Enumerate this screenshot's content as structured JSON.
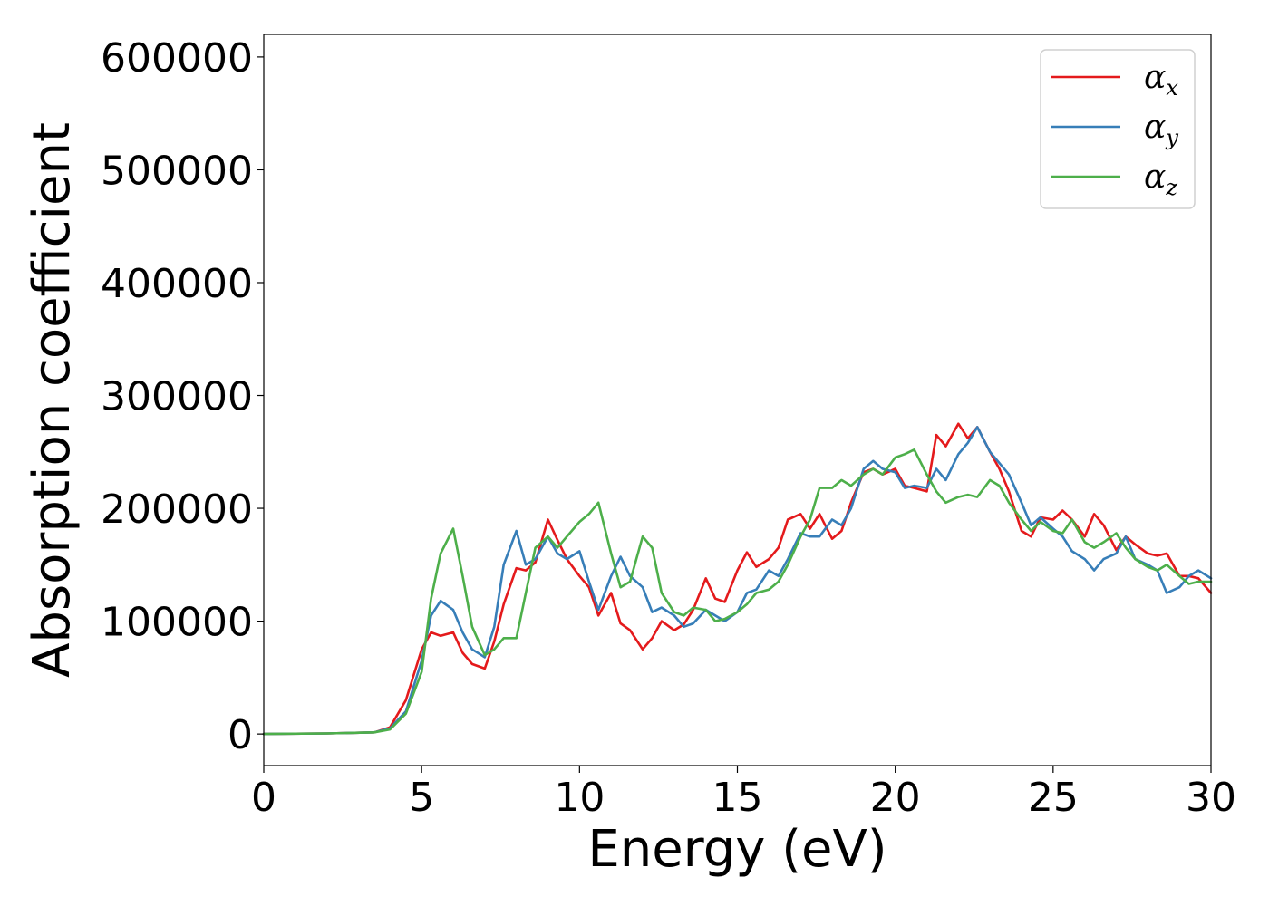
{
  "chart_data": {
    "type": "line",
    "title": "",
    "xlabel": "Energy (eV)",
    "ylabel": "Absorption coefficient",
    "xlim": [
      0,
      30
    ],
    "ylim": [
      -28000,
      620000
    ],
    "xticks": [
      0,
      5,
      10,
      15,
      20,
      25,
      30
    ],
    "xtick_labels": [
      "0",
      "5",
      "10",
      "15",
      "20",
      "25",
      "30"
    ],
    "yticks": [
      0,
      100000,
      200000,
      300000,
      400000,
      500000,
      600000
    ],
    "ytick_labels": [
      "0",
      "100000",
      "200000",
      "300000",
      "400000",
      "500000",
      "600000"
    ],
    "grid": false,
    "legend_position": "top-right",
    "series": [
      {
        "name": "αx",
        "name_base": "α",
        "name_sub": "x",
        "color": "#e41a1c",
        "x": [
          0,
          2,
          3.5,
          4.0,
          4.5,
          5.0,
          5.3,
          5.6,
          6.0,
          6.3,
          6.6,
          7.0,
          7.3,
          7.6,
          8.0,
          8.3,
          8.6,
          9.0,
          9.3,
          9.6,
          10.0,
          10.3,
          10.6,
          11.0,
          11.3,
          11.6,
          12.0,
          12.3,
          12.6,
          13.0,
          13.3,
          13.6,
          14.0,
          14.3,
          14.6,
          15.0,
          15.3,
          15.6,
          16.0,
          16.3,
          16.6,
          17.0,
          17.3,
          17.6,
          18.0,
          18.3,
          18.6,
          19.0,
          19.3,
          19.6,
          20.0,
          20.3,
          20.6,
          21.0,
          21.3,
          21.6,
          22.0,
          22.3,
          22.6,
          23.0,
          23.3,
          23.6,
          24.0,
          24.3,
          24.6,
          25.0,
          25.3,
          25.6,
          26.0,
          26.3,
          26.6,
          27.0,
          27.3,
          27.6,
          28.0,
          28.3,
          28.6,
          29.0,
          29.3,
          29.6,
          30.0
        ],
        "y": [
          0,
          500,
          1500,
          6000,
          30000,
          75000,
          90000,
          87000,
          90000,
          72000,
          62000,
          58000,
          82000,
          115000,
          147000,
          145000,
          152000,
          190000,
          172000,
          155000,
          140000,
          130000,
          105000,
          125000,
          98000,
          92000,
          75000,
          85000,
          100000,
          92000,
          97000,
          110000,
          138000,
          120000,
          117000,
          145000,
          161000,
          148000,
          155000,
          165000,
          190000,
          195000,
          182000,
          195000,
          173000,
          180000,
          205000,
          232000,
          235000,
          230000,
          235000,
          220000,
          218000,
          215000,
          265000,
          255000,
          275000,
          262000,
          272000,
          250000,
          235000,
          215000,
          180000,
          175000,
          192000,
          190000,
          198000,
          190000,
          175000,
          195000,
          185000,
          163000,
          175000,
          168000,
          160000,
          158000,
          160000,
          140000,
          140000,
          138000,
          125000
        ]
      },
      {
        "name": "αy",
        "name_base": "α",
        "name_sub": "y",
        "color": "#377eb8",
        "x": [
          0,
          2,
          3.5,
          4.0,
          4.5,
          5.0,
          5.3,
          5.6,
          6.0,
          6.3,
          6.6,
          7.0,
          7.3,
          7.6,
          8.0,
          8.3,
          8.6,
          9.0,
          9.3,
          9.6,
          10.0,
          10.3,
          10.6,
          11.0,
          11.3,
          11.6,
          12.0,
          12.3,
          12.6,
          13.0,
          13.3,
          13.6,
          14.0,
          14.3,
          14.6,
          15.0,
          15.3,
          15.6,
          16.0,
          16.3,
          16.6,
          17.0,
          17.3,
          17.6,
          18.0,
          18.3,
          18.6,
          19.0,
          19.3,
          19.6,
          20.0,
          20.3,
          20.6,
          21.0,
          21.3,
          21.6,
          22.0,
          22.3,
          22.6,
          23.0,
          23.3,
          23.6,
          24.0,
          24.3,
          24.6,
          25.0,
          25.3,
          25.6,
          26.0,
          26.3,
          26.6,
          27.0,
          27.3,
          27.6,
          28.0,
          28.3,
          28.6,
          29.0,
          29.3,
          29.6,
          30.0
        ],
        "y": [
          0,
          500,
          1500,
          5000,
          20000,
          65000,
          105000,
          118000,
          110000,
          90000,
          75000,
          68000,
          95000,
          150000,
          180000,
          150000,
          155000,
          175000,
          160000,
          155000,
          162000,
          135000,
          110000,
          140000,
          157000,
          140000,
          130000,
          108000,
          112000,
          105000,
          95000,
          98000,
          110000,
          105000,
          100000,
          108000,
          125000,
          128000,
          145000,
          140000,
          155000,
          178000,
          175000,
          175000,
          190000,
          185000,
          200000,
          235000,
          242000,
          235000,
          232000,
          218000,
          220000,
          218000,
          235000,
          225000,
          248000,
          258000,
          272000,
          250000,
          240000,
          230000,
          205000,
          185000,
          192000,
          182000,
          175000,
          162000,
          155000,
          145000,
          155000,
          160000,
          175000,
          155000,
          150000,
          145000,
          125000,
          130000,
          140000,
          145000,
          138000
        ]
      },
      {
        "name": "αz",
        "name_base": "α",
        "name_sub": "z",
        "color": "#4daf4a",
        "x": [
          0,
          2,
          3.5,
          4.0,
          4.5,
          5.0,
          5.3,
          5.6,
          6.0,
          6.3,
          6.6,
          7.0,
          7.3,
          7.6,
          8.0,
          8.3,
          8.6,
          9.0,
          9.3,
          9.6,
          10.0,
          10.3,
          10.6,
          11.0,
          11.3,
          11.6,
          12.0,
          12.3,
          12.6,
          13.0,
          13.3,
          13.6,
          14.0,
          14.3,
          14.6,
          15.0,
          15.3,
          15.6,
          16.0,
          16.3,
          16.6,
          17.0,
          17.3,
          17.6,
          18.0,
          18.3,
          18.6,
          19.0,
          19.3,
          19.6,
          20.0,
          20.3,
          20.6,
          21.0,
          21.3,
          21.6,
          22.0,
          22.3,
          22.6,
          23.0,
          23.3,
          23.6,
          24.0,
          24.3,
          24.6,
          25.0,
          25.3,
          25.6,
          26.0,
          26.3,
          26.6,
          27.0,
          27.3,
          27.6,
          28.0,
          28.3,
          28.6,
          29.0,
          29.3,
          29.6,
          30.0
        ],
        "y": [
          0,
          500,
          1500,
          4000,
          18000,
          55000,
          120000,
          160000,
          182000,
          140000,
          95000,
          70000,
          75000,
          85000,
          85000,
          125000,
          165000,
          175000,
          165000,
          175000,
          188000,
          195000,
          205000,
          160000,
          130000,
          135000,
          175000,
          165000,
          125000,
          108000,
          105000,
          112000,
          110000,
          100000,
          102000,
          108000,
          115000,
          125000,
          128000,
          135000,
          150000,
          175000,
          190000,
          218000,
          218000,
          225000,
          220000,
          230000,
          235000,
          230000,
          245000,
          248000,
          252000,
          230000,
          215000,
          205000,
          210000,
          212000,
          210000,
          225000,
          220000,
          205000,
          190000,
          180000,
          188000,
          180000,
          178000,
          190000,
          170000,
          165000,
          170000,
          178000,
          165000,
          155000,
          148000,
          145000,
          150000,
          140000,
          133000,
          135000,
          135000
        ]
      }
    ]
  }
}
